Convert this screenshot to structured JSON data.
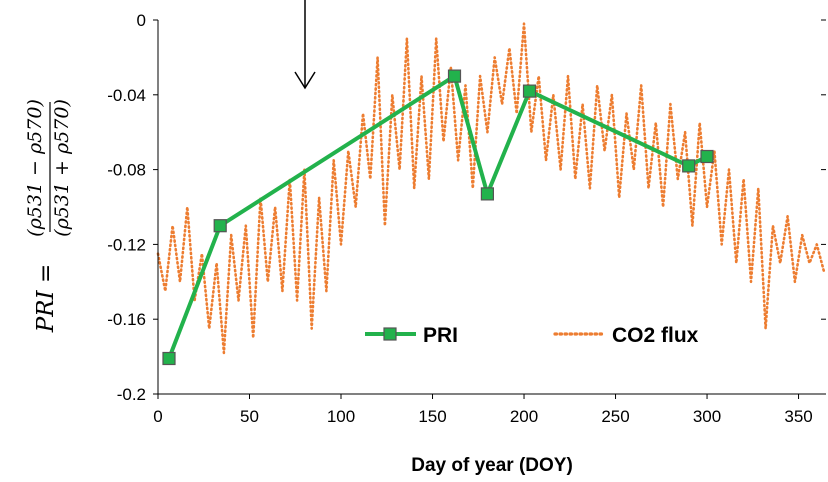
{
  "chart_data": {
    "type": "line",
    "title": "",
    "xlabel": "Day of year (DOY)",
    "ylabel": {
      "prefix": "PRI =",
      "numerator": "(ρ531 − ρ570)",
      "denominator": "(ρ531 + ρ570)"
    },
    "xlim": [
      0,
      365
    ],
    "ylim": [
      -0.2,
      0
    ],
    "x_ticks": [
      0,
      50,
      100,
      150,
      200,
      250,
      300,
      350
    ],
    "y_ticks": [
      0,
      -0.04,
      -0.08,
      -0.12,
      -0.16,
      -0.2
    ],
    "x_tick_labels": [
      "0",
      "50",
      "100",
      "150",
      "200",
      "250",
      "300",
      "350"
    ],
    "y_tick_labels": [
      "0",
      "-0.04",
      "-0.08",
      "-0.12",
      "-0.16",
      "-0.2"
    ],
    "grid": false,
    "legend_position": "lower-center",
    "series": [
      {
        "name": "PRI",
        "style": "solid-line-square-markers",
        "line_color": "#22b24c",
        "marker_color": "#22b24c",
        "marker_edge_color": "#555555",
        "x": [
          6,
          34,
          162,
          180,
          203,
          290,
          300
        ],
        "y": [
          -0.181,
          -0.11,
          -0.03,
          -0.093,
          -0.038,
          -0.078,
          -0.073
        ]
      },
      {
        "name": "CO2 flux",
        "style": "dotted-line",
        "line_color": "#ed7d31",
        "x": [
          0,
          4,
          8,
          12,
          16,
          20,
          24,
          28,
          32,
          36,
          40,
          44,
          48,
          52,
          56,
          60,
          64,
          68,
          72,
          76,
          80,
          84,
          88,
          92,
          96,
          100,
          104,
          108,
          112,
          116,
          120,
          124,
          128,
          132,
          136,
          140,
          144,
          148,
          152,
          156,
          160,
          164,
          168,
          172,
          176,
          180,
          184,
          188,
          192,
          196,
          200,
          204,
          208,
          212,
          216,
          220,
          224,
          228,
          232,
          236,
          240,
          244,
          248,
          252,
          256,
          260,
          264,
          268,
          272,
          276,
          280,
          284,
          288,
          292,
          296,
          300,
          304,
          308,
          312,
          316,
          320,
          324,
          328,
          332,
          336,
          340,
          344,
          348,
          352,
          356,
          360,
          364
        ],
        "y": [
          -0.125,
          -0.145,
          -0.11,
          -0.14,
          -0.1,
          -0.15,
          -0.125,
          -0.165,
          -0.13,
          -0.178,
          -0.115,
          -0.15,
          -0.11,
          -0.17,
          -0.095,
          -0.14,
          -0.1,
          -0.145,
          -0.085,
          -0.15,
          -0.08,
          -0.165,
          -0.095,
          -0.145,
          -0.075,
          -0.12,
          -0.07,
          -0.1,
          -0.05,
          -0.085,
          -0.02,
          -0.11,
          -0.04,
          -0.08,
          -0.01,
          -0.09,
          -0.03,
          -0.085,
          -0.01,
          -0.065,
          -0.025,
          -0.075,
          -0.035,
          -0.09,
          -0.03,
          -0.06,
          -0.02,
          -0.045,
          -0.015,
          -0.05,
          -0.002,
          -0.06,
          -0.03,
          -0.075,
          -0.04,
          -0.08,
          -0.03,
          -0.085,
          -0.045,
          -0.09,
          -0.035,
          -0.07,
          -0.04,
          -0.095,
          -0.05,
          -0.08,
          -0.035,
          -0.09,
          -0.055,
          -0.1,
          -0.045,
          -0.085,
          -0.06,
          -0.11,
          -0.055,
          -0.1,
          -0.07,
          -0.12,
          -0.08,
          -0.13,
          -0.085,
          -0.14,
          -0.09,
          -0.165,
          -0.11,
          -0.13,
          -0.105,
          -0.14,
          -0.115,
          -0.13,
          -0.12,
          -0.135
        ]
      }
    ]
  },
  "legend": {
    "pri_label": "PRI",
    "co2_label": "CO2 flux"
  }
}
